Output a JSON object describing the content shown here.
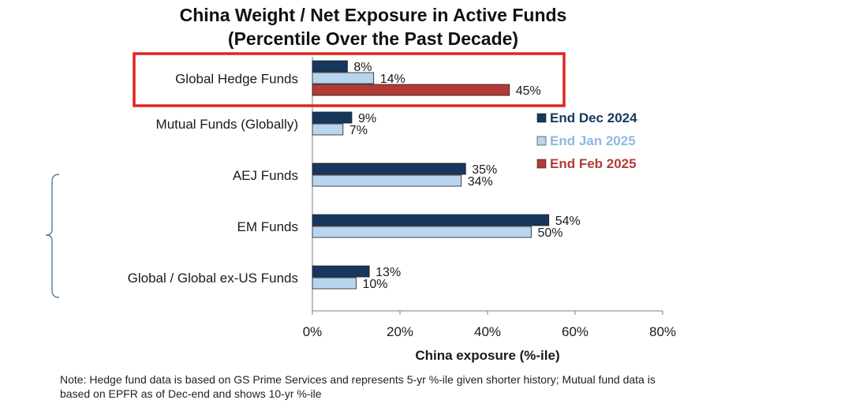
{
  "chart_data": {
    "type": "bar",
    "orientation": "horizontal",
    "title": "China Weight / Net Exposure in Active Funds",
    "subtitle": "(Percentile Over the Past Decade)",
    "xlabel": "China exposure  (%-ile)",
    "ylabel": "",
    "xlim": [
      0,
      80
    ],
    "x_ticks": [
      "0%",
      "20%",
      "40%",
      "60%",
      "80%"
    ],
    "categories": [
      "Global Hedge Funds",
      "Mutual Funds (Globally)",
      "AEJ Funds",
      "EM Funds",
      "Global / Global ex-US Funds"
    ],
    "series": [
      {
        "name": "End Dec 2024",
        "color": "#17375e",
        "values": [
          8,
          9,
          35,
          54,
          13
        ],
        "labels": [
          "8%",
          "9%",
          "35%",
          "54%",
          "13%"
        ]
      },
      {
        "name": "End Jan 2025",
        "color": "#b8d4ee",
        "values": [
          14,
          7,
          34,
          50,
          10
        ],
        "labels": [
          "14%",
          "7%",
          "34%",
          "50%",
          "10%"
        ]
      },
      {
        "name": "End Feb 2025",
        "color": "#b23b37",
        "values": [
          45,
          null,
          null,
          null,
          null
        ],
        "labels": [
          "45%",
          "",
          "",
          "",
          ""
        ]
      }
    ],
    "legend_position": "right",
    "highlight_category": "Global Hedge Funds",
    "highlight_color": "#e0261f",
    "grid": false
  },
  "note": "Note: Hedge  fund data is based on GS Prime  Services and represents 5-yr %-ile given shorter history; Mutual fund data is based on EPFR   as of Dec-end and shows 10-yr %-ile"
}
